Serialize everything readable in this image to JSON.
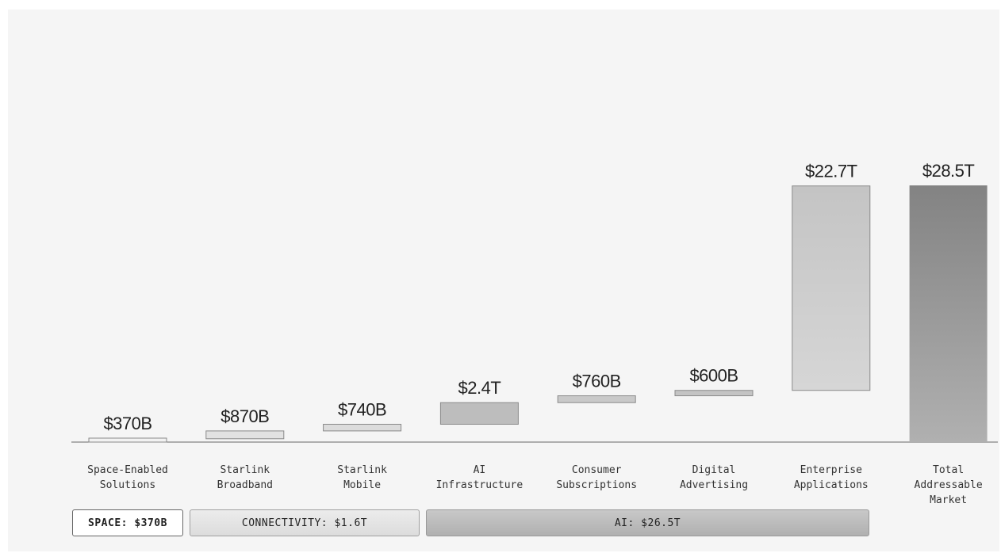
{
  "chart_data": {
    "type": "waterfall",
    "categories": [
      "Space-Enabled\nSolutions",
      "Starlink\nBroadband",
      "Starlink\nMobile",
      "AI\nInfrastructure",
      "Consumer\nSubscriptions",
      "Digital\nAdvertising",
      "Enterprise\nApplications",
      "Total\nAddressable\nMarket"
    ],
    "value_labels": [
      "$370B",
      "$870B",
      "$740B",
      "$2.4T",
      "$760B",
      "$600B",
      "$22.7T",
      "$28.5T"
    ],
    "values_trillions": [
      0.37,
      0.87,
      0.74,
      2.4,
      0.76,
      0.6,
      22.7,
      28.5
    ],
    "is_total": [
      false,
      false,
      false,
      false,
      false,
      false,
      false,
      true
    ],
    "bar_colors": [
      "#f2f2f2",
      "#e2e2e2",
      "#dcdcdc",
      "#bdbdbd",
      "#c9c9c9",
      "#c4c4c4",
      "#bcbcbc",
      "#8a8a8a"
    ],
    "title": "",
    "xlabel": "",
    "ylabel": "",
    "grid": false,
    "legend": "none"
  },
  "groups": {
    "space": "SPACE: $370B",
    "connectivity": "CONNECTIVITY: $1.6T",
    "ai": "AI: $26.5T"
  }
}
